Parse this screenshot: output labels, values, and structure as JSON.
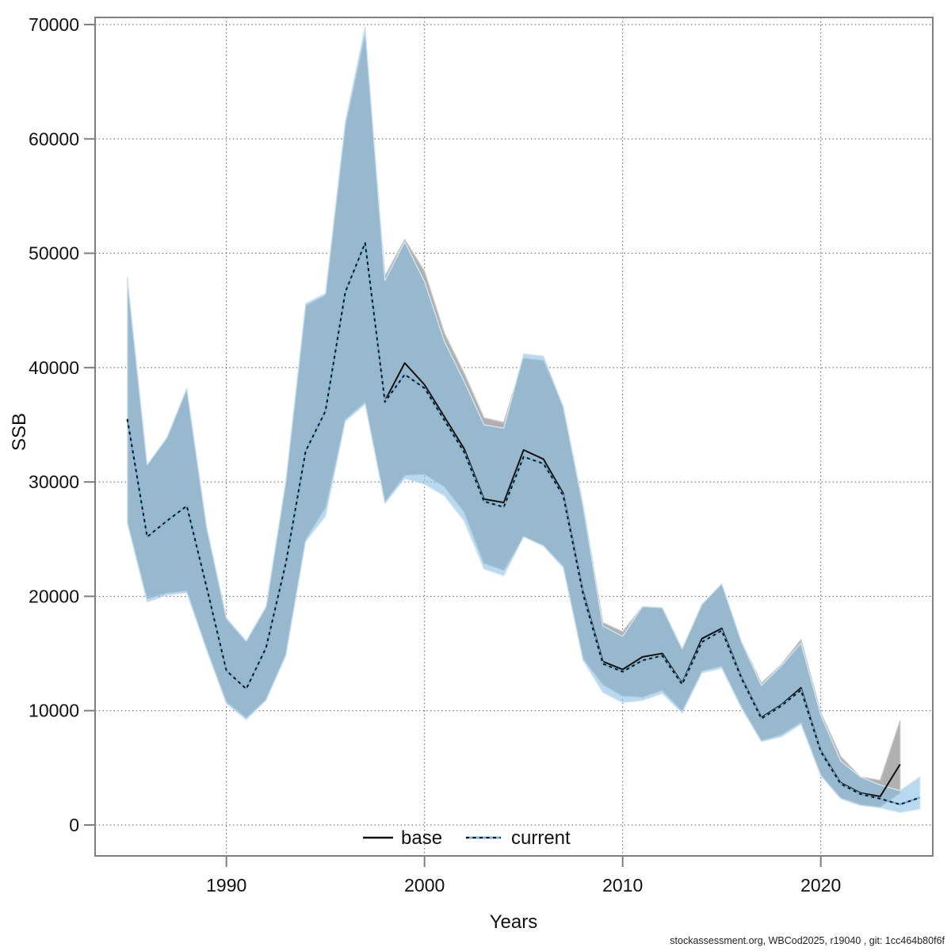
{
  "figure": {
    "ylabel": "SSB",
    "xlabel": "Years",
    "footer": "stockassessment.org, WBCod2025, r19040 , git: 1cc464b80f6f"
  },
  "colors": {
    "base_line": "#111111",
    "base_band": "#b0b0b0",
    "current_line_under": "#74b3d8",
    "current_line_dash": "#0d0d0d",
    "current_band": "rgba(133,190,226,0.58)",
    "border": "#7f7f7f",
    "grid": "#3a3a3a"
  },
  "chart_data": {
    "type": "line",
    "title": "",
    "xlabel": "Years",
    "ylabel": "SSB",
    "xlim": [
      1983.5,
      2025.6
    ],
    "ylim": [
      0,
      70000
    ],
    "x_ticks": [
      1990,
      2000,
      2010,
      2020
    ],
    "y_ticks": [
      0,
      10000,
      20000,
      30000,
      40000,
      50000,
      60000,
      70000
    ],
    "grid": "dotted",
    "legend_position": "bottom-center",
    "legend": [
      {
        "label": "base",
        "style": "solid-black"
      },
      {
        "label": "current",
        "style": "dashed-blue"
      }
    ],
    "footer": "stockassessment.org, WBCod2025, r19040 , git: 1cc464b80f6f",
    "series": [
      {
        "name": "base",
        "line": "solid",
        "years": [
          1985,
          1986,
          1987,
          1988,
          1989,
          1990,
          1991,
          1992,
          1993,
          1994,
          1995,
          1996,
          1997,
          1998,
          1999,
          2000,
          2001,
          2002,
          2003,
          2004,
          2005,
          2006,
          2007,
          2008,
          2009,
          2010,
          2011,
          2012,
          2013,
          2014,
          2015,
          2016,
          2017,
          2018,
          2019,
          2020,
          2021,
          2022,
          2023,
          2024
        ],
        "values": [
          35500,
          25200,
          26600,
          27900,
          20800,
          13500,
          11900,
          15500,
          22900,
          32700,
          36200,
          46600,
          50900,
          37100,
          40400,
          38500,
          35700,
          32900,
          28500,
          28200,
          32800,
          32000,
          29000,
          20400,
          14300,
          13600,
          14700,
          15000,
          12400,
          16300,
          17200,
          12900,
          9400,
          10500,
          12000,
          6500,
          3700,
          2800,
          2500,
          5300
        ],
        "ci_upper": [
          47700,
          31500,
          33800,
          38000,
          26000,
          18000,
          16000,
          19000,
          30000,
          45400,
          46300,
          61000,
          69000,
          48000,
          51200,
          48400,
          43000,
          39500,
          35600,
          35200,
          40800,
          40600,
          36600,
          28000,
          17700,
          16900,
          19100,
          19000,
          15400,
          19300,
          21100,
          16000,
          12400,
          14000,
          16200,
          9800,
          6000,
          4200,
          3900,
          9100
        ],
        "ci_lower": [
          26400,
          19800,
          20300,
          20500,
          15500,
          10800,
          9400,
          11000,
          15000,
          25000,
          27800,
          35500,
          37000,
          28300,
          30600,
          30700,
          29600,
          27400,
          22900,
          22300,
          25200,
          24400,
          22700,
          14600,
          12300,
          11300,
          11200,
          11800,
          10000,
          13500,
          13900,
          10400,
          7400,
          7900,
          9000,
          4400,
          2400,
          1800,
          1600,
          2800
        ]
      },
      {
        "name": "current",
        "line": "dashed",
        "years": [
          1985,
          1986,
          1987,
          1988,
          1989,
          1990,
          1991,
          1992,
          1993,
          1994,
          1995,
          1996,
          1997,
          1998,
          1999,
          2000,
          2001,
          2002,
          2003,
          2004,
          2005,
          2006,
          2007,
          2008,
          2009,
          2010,
          2011,
          2012,
          2013,
          2014,
          2015,
          2016,
          2017,
          2018,
          2019,
          2020,
          2021,
          2022,
          2023,
          2024,
          2025
        ],
        "values": [
          35500,
          25200,
          26600,
          27900,
          20800,
          13500,
          11900,
          15500,
          22900,
          32700,
          36200,
          46600,
          50900,
          37000,
          39400,
          38200,
          35400,
          32600,
          28300,
          27800,
          32200,
          31600,
          28800,
          20200,
          14100,
          13400,
          14400,
          14800,
          12300,
          16000,
          17000,
          12800,
          9300,
          10400,
          11800,
          6400,
          3600,
          2700,
          2300,
          1800,
          2400
        ],
        "ci_upper": [
          47900,
          31500,
          33900,
          38200,
          26100,
          18100,
          16100,
          19100,
          30100,
          45600,
          46500,
          61500,
          69800,
          47600,
          51000,
          47500,
          42300,
          38800,
          35000,
          34700,
          41200,
          41000,
          36600,
          27900,
          17400,
          16500,
          19100,
          19000,
          15400,
          19300,
          21100,
          16000,
          12200,
          13900,
          15900,
          9600,
          5600,
          4200,
          3500,
          3000,
          4200
        ],
        "ci_lower": [
          26400,
          19500,
          20100,
          20300,
          15300,
          10600,
          9200,
          10900,
          14800,
          24800,
          27000,
          35300,
          36800,
          28100,
          30300,
          29800,
          28800,
          26600,
          22400,
          21800,
          25200,
          24400,
          22500,
          14400,
          11600,
          10700,
          10900,
          11500,
          9800,
          13300,
          13700,
          10200,
          7300,
          7700,
          8800,
          4300,
          2300,
          1700,
          1500,
          1100,
          1400
        ]
      }
    ]
  }
}
